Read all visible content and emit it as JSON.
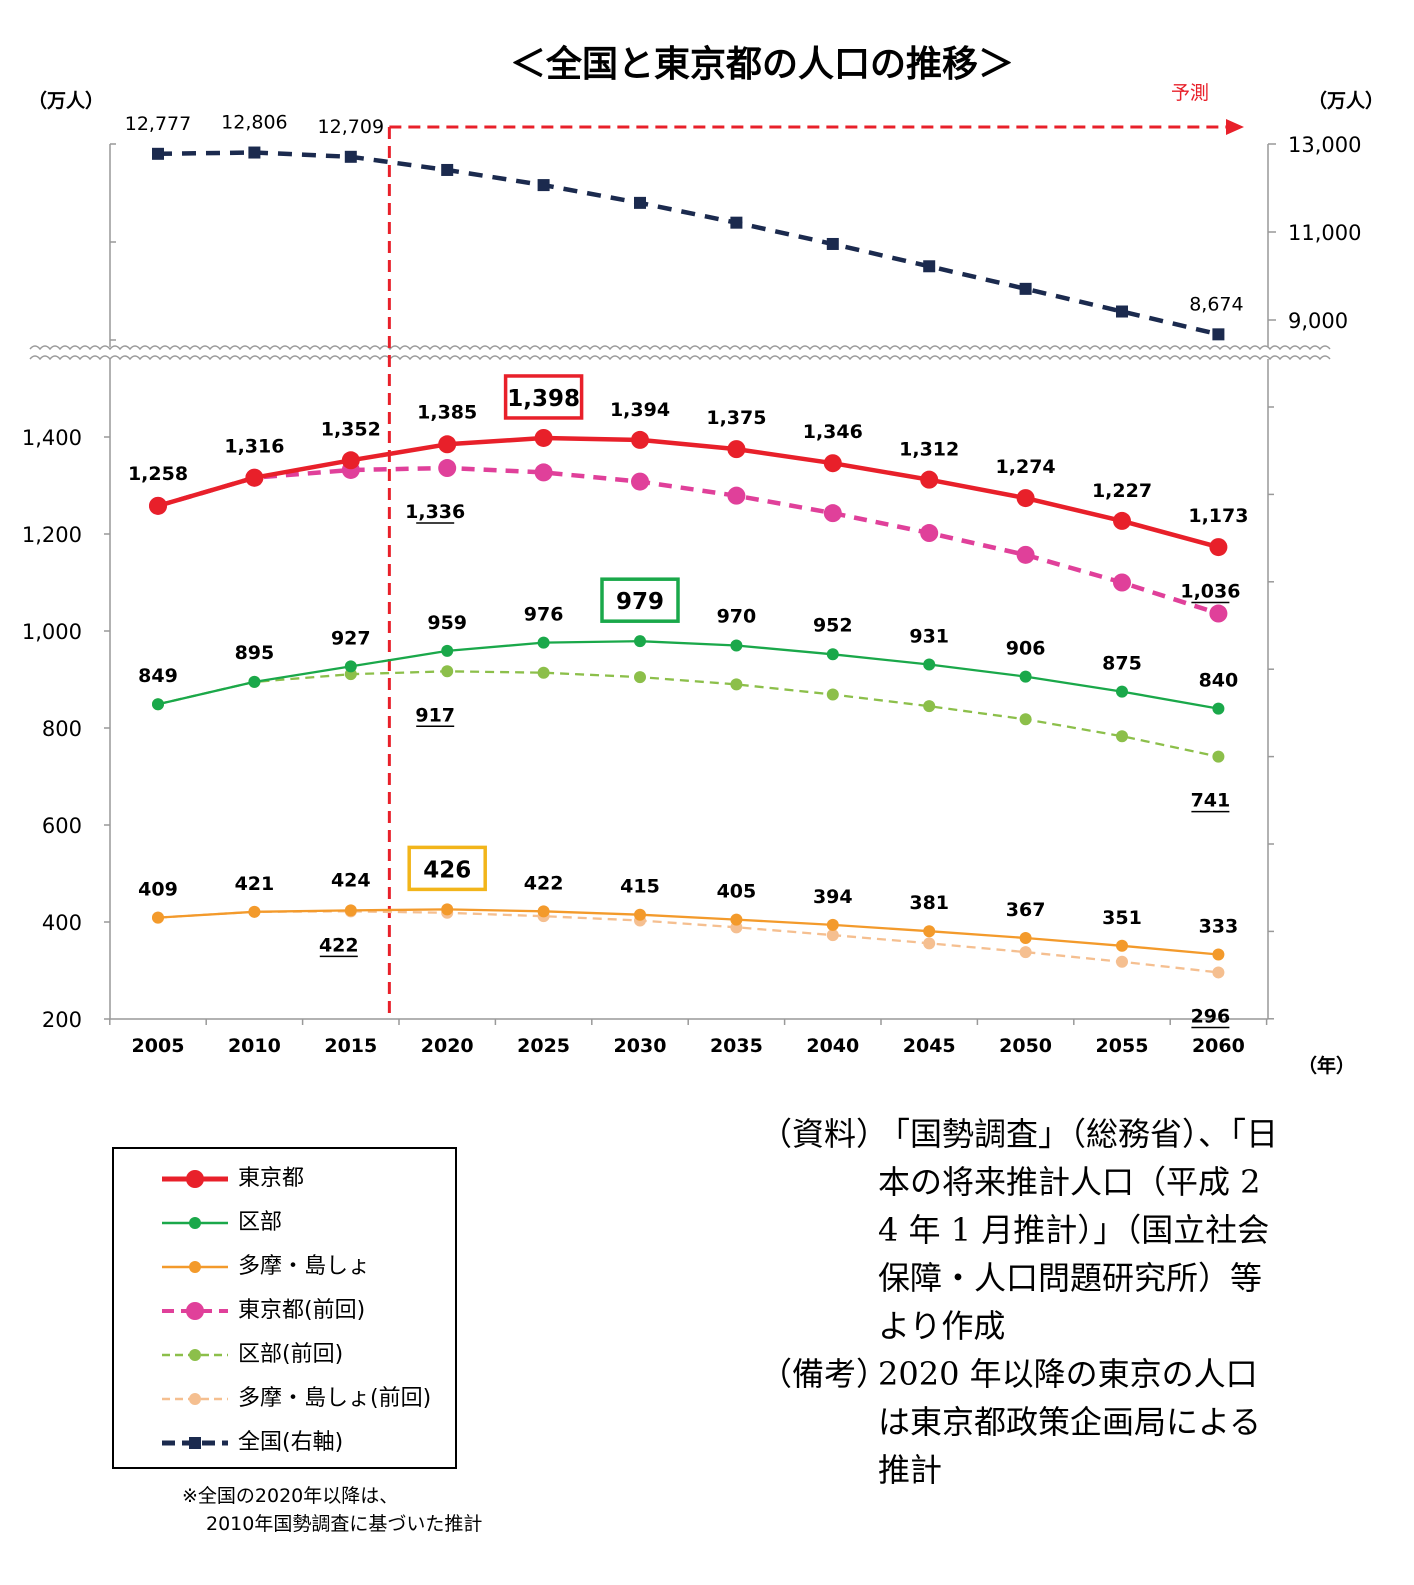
{
  "chart_data": {
    "type": "line",
    "title": "＜全国と東京都の人口の推移＞",
    "left_axis_unit": "（万人）",
    "right_axis_unit": "（万人）",
    "x_axis_unit": "（年）",
    "forecast_label": "予測",
    "forecast_start": 2017,
    "x": [
      2005,
      2010,
      2015,
      2020,
      2025,
      2030,
      2035,
      2040,
      2045,
      2050,
      2055,
      2060
    ],
    "x_tick_labels": [
      "2005",
      "2010",
      "2015",
      "2020",
      "2025",
      "2030",
      "2035",
      "2040",
      "2045",
      "2050",
      "2055",
      "2060"
    ],
    "left_ylim": [
      200,
      1600
    ],
    "left_tick_labels": [
      "200",
      "400",
      "600",
      "800",
      "1,000",
      "1,200",
      "1,400"
    ],
    "left_tick_values": [
      200,
      400,
      600,
      800,
      1000,
      1200,
      1400
    ],
    "right_ylim": [
      8000,
      13000
    ],
    "right_tick_labels": [
      "9,000",
      "11,000",
      "13,000"
    ],
    "right_tick_values": [
      9000,
      11000,
      13000
    ],
    "axis_break": true,
    "grid": false,
    "series": [
      {
        "name": "東京都",
        "axis": "left",
        "color": "#e8202a",
        "style": "solid",
        "marker": "circle-large",
        "values": [
          1258,
          1316,
          1352,
          1385,
          1398,
          1394,
          1375,
          1346,
          1312,
          1274,
          1227,
          1173
        ],
        "labels": [
          "1,258",
          "1,316",
          "1,352",
          "1,385",
          "1,398",
          "1,394",
          "1,375",
          "1,346",
          "1,312",
          "1,274",
          "1,227",
          "1,173"
        ],
        "highlight_index": 4
      },
      {
        "name": "区部",
        "axis": "left",
        "color": "#1aa84a",
        "style": "solid",
        "marker": "circle-small",
        "values": [
          849,
          895,
          927,
          959,
          976,
          979,
          970,
          952,
          931,
          906,
          875,
          840
        ],
        "labels": [
          "849",
          "895",
          "927",
          "959",
          "976",
          "979",
          "970",
          "952",
          "931",
          "906",
          "875",
          "840"
        ],
        "highlight_index": 5
      },
      {
        "name": "多摩・島しょ",
        "axis": "left",
        "color": "#f39a2b",
        "style": "solid",
        "marker": "circle-small",
        "values": [
          409,
          421,
          424,
          426,
          422,
          415,
          405,
          394,
          381,
          367,
          351,
          333
        ],
        "labels": [
          "409",
          "421",
          "424",
          "426",
          "422",
          "415",
          "405",
          "394",
          "381",
          "367",
          "351",
          "333"
        ],
        "highlight_index": 3
      },
      {
        "name": "東京都(前回)",
        "axis": "left",
        "color": "#e0409a",
        "style": "dashed",
        "marker": "circle-large",
        "values": [
          1258,
          1316,
          1332,
          1336,
          1327,
          1308,
          1279,
          1243,
          1202,
          1157,
          1100,
          1036
        ],
        "labels": [
          "1,336",
          "1,036"
        ],
        "label_indices": [
          3,
          11
        ]
      },
      {
        "name": "区部(前回)",
        "axis": "left",
        "color": "#8cbf4a",
        "style": "dashed",
        "marker": "circle-small",
        "values": [
          849,
          895,
          911,
          917,
          914,
          905,
          890,
          869,
          845,
          818,
          783,
          741
        ],
        "labels": [
          "917",
          "741"
        ],
        "label_indices": [
          3,
          11
        ]
      },
      {
        "name": "多摩・島しょ(前回)",
        "axis": "left",
        "color": "#f5bf90",
        "style": "dashed",
        "marker": "circle-small",
        "values": [
          409,
          421,
          422,
          419,
          412,
          403,
          389,
          373,
          356,
          338,
          318,
          296
        ],
        "labels": [
          "422",
          "296"
        ],
        "label_indices": [
          2,
          11
        ]
      },
      {
        "name": "全国(右軸)",
        "axis": "right",
        "color": "#1b2a4e",
        "style": "dashed",
        "marker": "square",
        "values": [
          12777,
          12806,
          12709,
          12410,
          12066,
          11662,
          11212,
          10728,
          10221,
          9708,
          9193,
          8674
        ],
        "labels": [
          "12,777",
          "12,806",
          "12,709",
          "8,674"
        ],
        "label_indices": [
          0,
          1,
          2,
          11
        ]
      }
    ]
  },
  "legend": {
    "items": [
      {
        "label": "東京都"
      },
      {
        "label": "区部"
      },
      {
        "label": "多摩・島しょ"
      },
      {
        "label": "東京都(前回)"
      },
      {
        "label": "区部(前回)"
      },
      {
        "label": "多摩・島しょ(前回)"
      },
      {
        "label": "全国(右軸)"
      }
    ]
  },
  "footnote": {
    "line1": "※全国の2020年以降は、",
    "line2": "2010年国勢調査に基づいた推計"
  },
  "source": {
    "label1": "（資料）",
    "text1": "「国勢調査」（総務省）、「日本の将来推計人口（平成 24 年 1 月推計）」（国立社会保障・人口問題研究所）等より作成",
    "label2": "（備考）",
    "text2": "2020 年以降の東京の人口は東京都政策企画局による推計"
  }
}
